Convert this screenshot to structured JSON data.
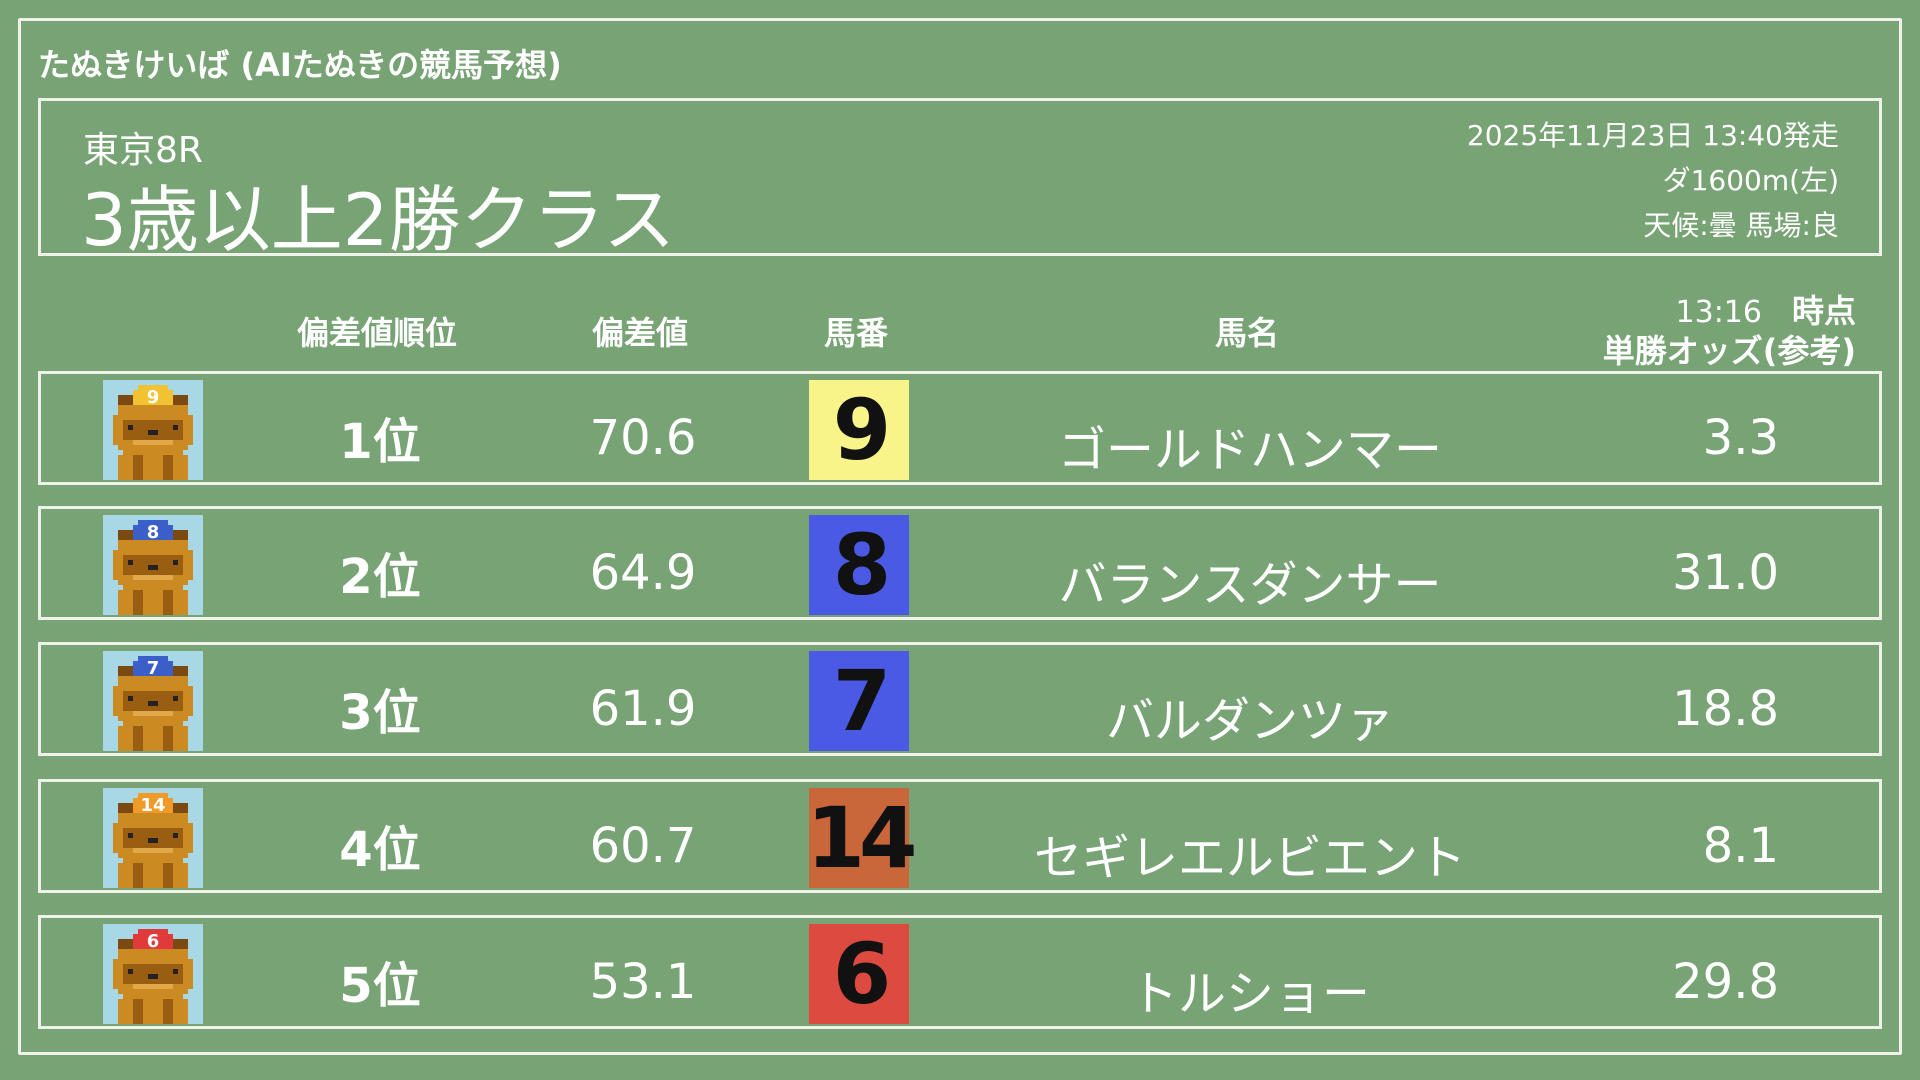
{
  "site_title": "たぬきけいば (AIたぬきの競馬予想)",
  "race": {
    "venue": "東京8R",
    "name": "3歳以上2勝クラス",
    "datetime": "2025年11月23日 13:40発走",
    "course": "ダ1600m(左)",
    "conditions": "天候:曇 馬場:良"
  },
  "table": {
    "headers": {
      "rank": "偏差値順位",
      "score": "偏差値",
      "number": "馬番",
      "name": "馬名",
      "odds_time": "13:16",
      "odds_time_suffix": "時点",
      "odds": "単勝オッズ(参考)"
    },
    "rows": [
      {
        "rank": "1位",
        "score": "70.6",
        "number": "9",
        "name": "ゴールドハンマー",
        "odds": "3.3",
        "color": "#f8f48a",
        "cap": "#f1c232"
      },
      {
        "rank": "2位",
        "score": "64.9",
        "number": "8",
        "name": "バランスダンサー",
        "odds": "31.0",
        "color": "#4a5ae4",
        "cap": "#3a5fc8"
      },
      {
        "rank": "3位",
        "score": "61.9",
        "number": "7",
        "name": "バルダンツァ",
        "odds": "18.8",
        "color": "#4a5ae4",
        "cap": "#3a5fc8"
      },
      {
        "rank": "4位",
        "score": "60.7",
        "number": "14",
        "name": "セギレエルビエント",
        "odds": "8.1",
        "color": "#c9663a",
        "cap": "#f09a28"
      },
      {
        "rank": "5位",
        "score": "53.1",
        "number": "6",
        "name": "トルショー",
        "odds": "29.8",
        "color": "#dc4a40",
        "cap": "#e03a3a"
      }
    ]
  }
}
